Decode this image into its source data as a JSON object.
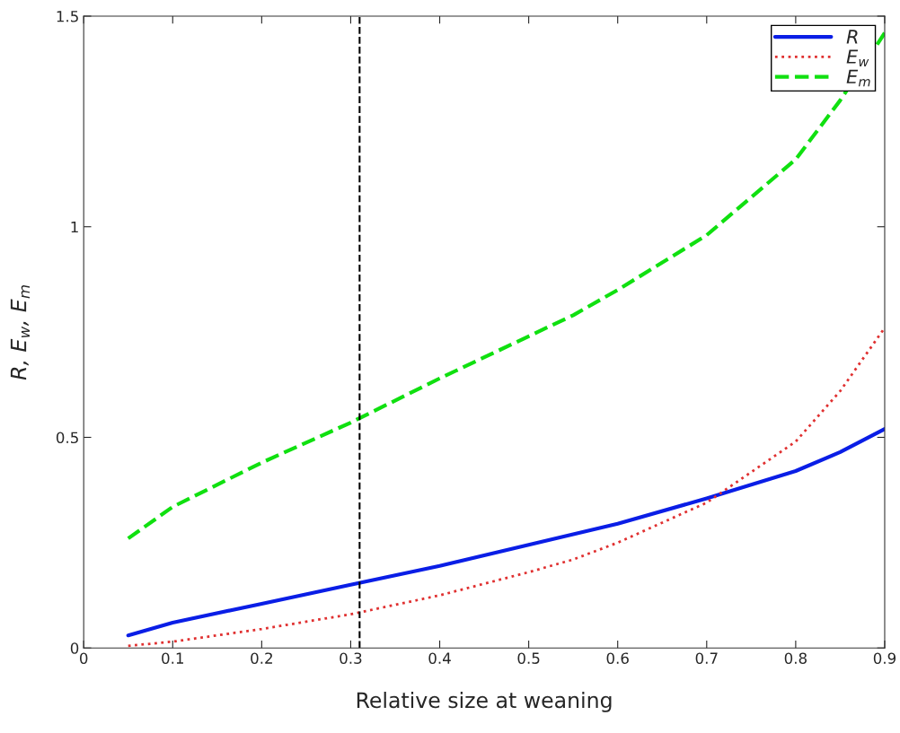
{
  "chart_data": {
    "type": "line",
    "xlabel": "Relative size at weaning",
    "ylabel": "R, E$_{w}$, E$_{m}$",
    "x": [
      0.05,
      0.1,
      0.2,
      0.3,
      0.4,
      0.5,
      0.55,
      0.6,
      0.7,
      0.8,
      0.85,
      0.9
    ],
    "series": [
      {
        "name": "R",
        "color": "#0a1ee6",
        "line_style": "solid",
        "values": [
          0.03,
          0.06,
          0.105,
          0.15,
          0.195,
          0.245,
          0.27,
          0.295,
          0.355,
          0.42,
          0.465,
          0.52
        ]
      },
      {
        "name": "E$_{w}$",
        "color": "#e03030",
        "line_style": "dotted",
        "values": [
          0.005,
          0.015,
          0.045,
          0.08,
          0.125,
          0.18,
          0.21,
          0.25,
          0.345,
          0.49,
          0.61,
          0.76
        ]
      },
      {
        "name": "E$_{m}$",
        "color": "#10e010",
        "line_style": "dashed",
        "values": [
          0.26,
          0.335,
          0.44,
          0.535,
          0.64,
          0.74,
          0.79,
          0.85,
          0.98,
          1.16,
          1.3,
          1.46
        ]
      }
    ],
    "xlim": [
      0,
      0.9
    ],
    "ylim": [
      0,
      1.5
    ],
    "xticks": [
      0,
      0.1,
      0.2,
      0.3,
      0.4,
      0.5,
      0.6,
      0.7,
      0.8,
      0.9
    ],
    "yticks": [
      0,
      {
        "value": 0.5,
        "label": "0.5"
      },
      1,
      {
        "value": 1.5,
        "label": "1.5"
      }
    ],
    "ref_lines": [
      {
        "axis": "x",
        "value": 0.31,
        "color": "#000000",
        "line_style": "dashed"
      }
    ],
    "legend": "top right",
    "grid": false
  }
}
